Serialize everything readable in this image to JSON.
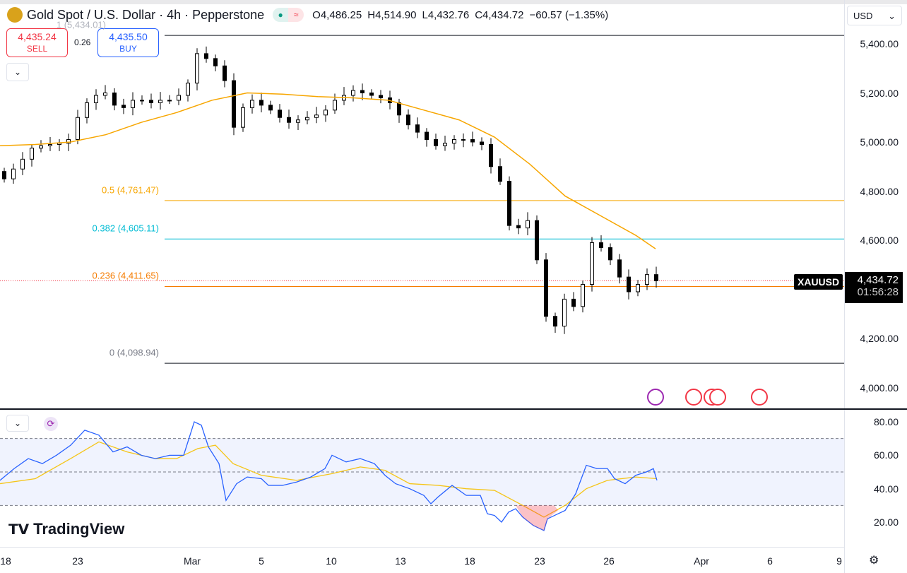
{
  "header": {
    "title": "Gold Spot / U.S. Dollar · 4h · Pepperstone",
    "open": "O4,486.25",
    "high": "H4,514.90",
    "low": "L4,432.76",
    "close": "C4,434.72",
    "change": "−60.57 (−1.35%)"
  },
  "trade": {
    "sell_price": "4,435.24",
    "sell_label": "SELL",
    "spread": "0.26",
    "buy_price": "4,435.50",
    "buy_label": "BUY"
  },
  "currency": "USD",
  "symbol_tag": "XAUUSD",
  "last_price": "4,434.72",
  "countdown": "01:56:28",
  "brand": "TradingView",
  "colors": {
    "fib05": "#f7a600",
    "fib382": "#00bcd4",
    "fib236": "#f57c00",
    "ma": "#f7a600",
    "rsi": "#2962ff",
    "rsi_ma": "#f5c518"
  },
  "chart_data": [
    {
      "type": "candlestick",
      "title": "Gold Spot / U.S. Dollar 4h",
      "price_ticks": [
        "5,400.00",
        "5,200.00",
        "5,000.00",
        "4,800.00",
        "4,600.00",
        "4,200.00",
        "4,000.00"
      ],
      "price_tick_values": [
        5400,
        5200,
        5000,
        4800,
        4600,
        4200,
        4000
      ],
      "x_ticks": [
        "18",
        "23",
        "Mar",
        "5",
        "10",
        "13",
        "18",
        "23",
        "26",
        "Apr",
        "6",
        "9"
      ],
      "closes": [
        4850,
        4890,
        4930,
        4975,
        4985,
        4990,
        4995,
        5010,
        5100,
        5160,
        5190,
        5200,
        5150,
        5140,
        5170,
        5170,
        5160,
        5170,
        5170,
        5190,
        5240,
        5360,
        5340,
        5310,
        5250,
        5060,
        5140,
        5170,
        5150,
        5130,
        5100,
        5080,
        5090,
        5100,
        5110,
        5130,
        5170,
        5190,
        5210,
        5200,
        5190,
        5180,
        5160,
        5110,
        5070,
        5040,
        5010,
        4985,
        4995,
        5010,
        5010,
        5000,
        4990,
        4900,
        4840,
        4660,
        4650,
        4680,
        4520,
        4290,
        4250,
        4360,
        4330,
        4420,
        4590,
        4570,
        4520,
        4450,
        4390,
        4420,
        4460,
        4434.72
      ],
      "moving_average": [
        4985,
        4990,
        5000,
        5030,
        5080,
        5120,
        5170,
        5200,
        5195,
        5185,
        5180,
        5170,
        5130,
        5090,
        5020,
        4910,
        4780,
        4700,
        4620,
        4565
      ],
      "fib_levels": [
        {
          "label": "1 (5,434.01)",
          "value": 5434.01
        },
        {
          "label": "0.5 (4,761.47)",
          "value": 4761.47
        },
        {
          "label": "0.382 (4,605.11)",
          "value": 4605.11
        },
        {
          "label": "0.236 (4,411.65)",
          "value": 4411.65
        },
        {
          "label": "0 (4,098.94)",
          "value": 4098.94
        }
      ]
    },
    {
      "type": "line",
      "title": "RSI",
      "ticks": [
        "80.00",
        "60.00",
        "40.00",
        "20.00"
      ],
      "tick_values": [
        80,
        60,
        40,
        20
      ],
      "bands": [
        70,
        50,
        30
      ],
      "rsi": [
        45,
        52,
        58,
        55,
        60,
        66,
        75,
        72,
        62,
        65,
        60,
        58,
        60,
        60,
        80,
        78,
        65,
        55,
        33,
        43,
        47,
        46,
        42,
        42,
        44,
        47,
        52,
        60,
        56,
        58,
        55,
        48,
        43,
        40,
        36,
        31,
        35,
        42,
        36,
        36,
        25,
        24,
        20,
        26,
        28,
        23,
        18,
        15,
        22,
        25,
        27,
        37,
        54,
        52,
        52,
        46,
        43,
        48,
        50,
        52,
        45
      ],
      "rsi_ma": [
        43,
        46,
        58,
        68,
        62,
        58,
        58,
        64,
        66,
        55,
        48,
        45,
        49,
        53,
        51,
        43,
        42,
        40,
        39,
        30,
        23,
        30,
        40,
        45,
        47,
        46
      ]
    }
  ]
}
